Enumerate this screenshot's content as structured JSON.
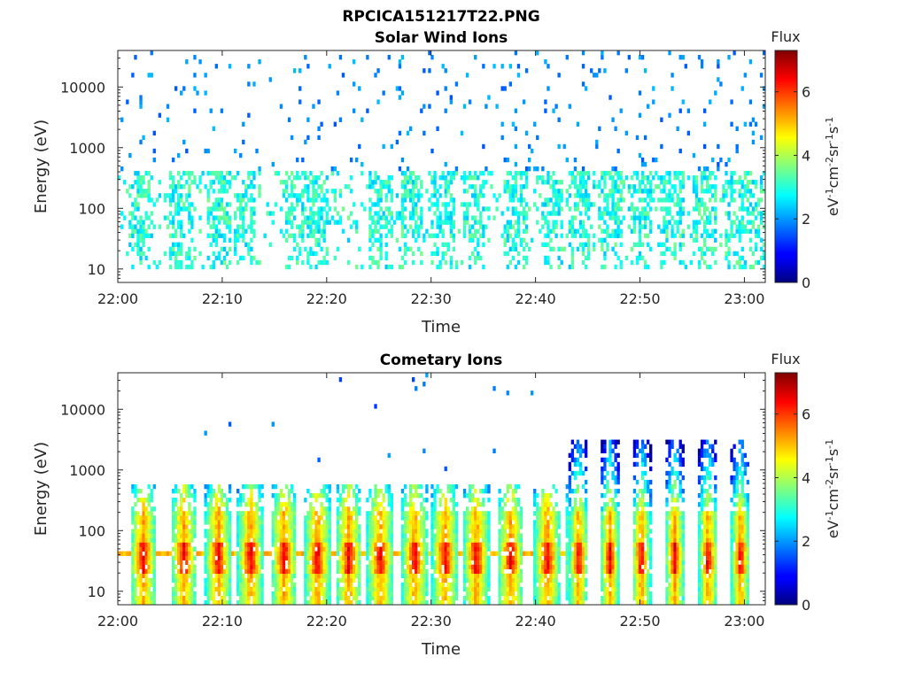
{
  "figure_title": "RPCICA151217T22.PNG",
  "chart_data": [
    {
      "type": "heatmap",
      "title": "Solar Wind Ions",
      "xlabel": "Time",
      "ylabel": "Energy (eV)",
      "x_ticks": [
        "22:00",
        "22:10",
        "22:20",
        "22:30",
        "22:40",
        "22:50",
        "23:00"
      ],
      "x_range": [
        "22:00",
        "23:02"
      ],
      "y_scale": "log",
      "y_ticks": [
        10,
        100,
        1000,
        10000
      ],
      "y_range": [
        6,
        40000
      ],
      "colorbar": {
        "label_title": "Flux",
        "unit_base": "eV",
        "unit_parts": [
          "-1",
          "cm",
          "-2",
          "sr",
          "-1",
          "s",
          "-1"
        ],
        "ticks": [
          0,
          2,
          4,
          6
        ],
        "range": [
          0,
          7.3
        ],
        "colormap": "jet"
      },
      "scan_times_min": [
        2,
        6,
        9.5,
        12,
        17,
        19,
        25,
        28,
        31,
        34,
        38,
        41.5,
        44,
        47,
        50,
        53,
        56,
        59,
        61
      ],
      "features": {
        "sparse_background_energy_range": [
          500,
          30000
        ],
        "background_flux": [
          1.5,
          2.3
        ],
        "dense_band_energy_range": [
          10,
          400
        ],
        "dense_band_flux": [
          2.3,
          3.6
        ]
      }
    },
    {
      "type": "heatmap",
      "title": "Cometary Ions",
      "xlabel": "Time",
      "ylabel": "Energy (eV)",
      "x_ticks": [
        "22:00",
        "22:10",
        "22:20",
        "22:30",
        "22:40",
        "22:50",
        "23:00"
      ],
      "x_range": [
        "22:00",
        "23:02"
      ],
      "y_scale": "log",
      "y_ticks": [
        10,
        100,
        1000,
        10000
      ],
      "y_range": [
        6,
        40000
      ],
      "colorbar": {
        "label_title": "Flux",
        "unit_base": "eV",
        "unit_parts": [
          "-1",
          "cm",
          "-2",
          "sr",
          "-1",
          "s",
          "-1"
        ],
        "ticks": [
          0,
          2,
          4,
          6
        ],
        "range": [
          0,
          7.3
        ],
        "colormap": "jet"
      },
      "scan_times_min": [
        2.3,
        6.2,
        9.5,
        12.6,
        15.8,
        19,
        22,
        25,
        28.3,
        31.2,
        34.2,
        37.5,
        41,
        44,
        47,
        50,
        53.2,
        56.4,
        59.5
      ],
      "features": {
        "band_top_energy_before_2243": 600,
        "band_top_energy_after_2243": 3000,
        "persistent_line_energy": 40,
        "persistent_line_flux": 5.2,
        "peak_flux_energy_range": [
          20,
          60
        ],
        "peak_flux": 6.8
      }
    }
  ]
}
